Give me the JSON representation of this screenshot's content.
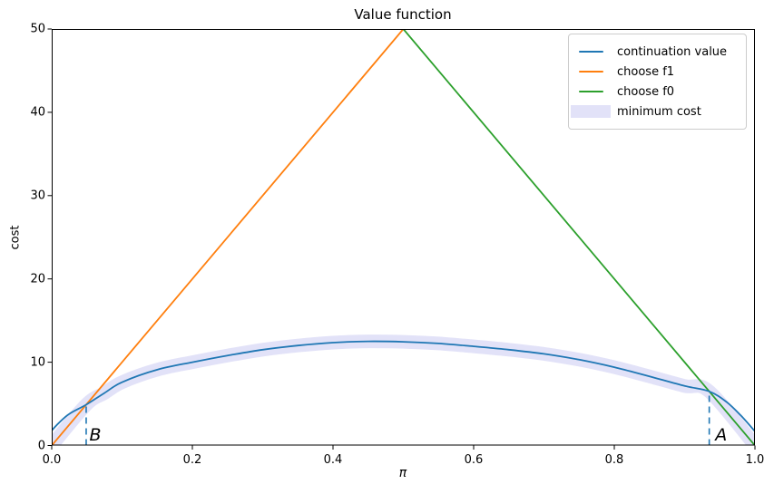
{
  "chart_data": {
    "type": "line",
    "title": "Value function",
    "xlabel": "π",
    "ylabel": "cost",
    "xlim": [
      0.0,
      1.0
    ],
    "ylim": [
      0,
      50
    ],
    "grid": false,
    "x_ticks": [
      0.0,
      0.2,
      0.4,
      0.6,
      0.8,
      1.0
    ],
    "x_tick_labels": [
      "0.0",
      "0.2",
      "0.4",
      "0.6",
      "0.8",
      "1.0"
    ],
    "y_ticks": [
      0,
      10,
      20,
      30,
      40,
      50
    ],
    "y_tick_labels": [
      "0",
      "10",
      "20",
      "30",
      "40",
      "50"
    ],
    "frame_color": "#000000",
    "legend": {
      "position": "upper right",
      "entries": [
        {
          "label": "continuation value",
          "type": "line",
          "color": "#1f77b4"
        },
        {
          "label": "choose f1",
          "type": "line",
          "color": "#ff7f0e"
        },
        {
          "label": "choose f0",
          "type": "line",
          "color": "#2ca02c"
        },
        {
          "label": "minimum cost",
          "type": "patch",
          "color": "#e2e2f8"
        }
      ]
    },
    "series": [
      {
        "name": "minimum cost",
        "kind": "band",
        "color": "#e2e2f8",
        "stroke_width": 15,
        "smooth": true,
        "x": [
          0.0,
          0.049,
          0.075,
          0.1,
          0.15,
          0.2,
          0.25,
          0.3,
          0.35,
          0.4,
          0.45,
          0.5,
          0.55,
          0.6,
          0.65,
          0.7,
          0.75,
          0.8,
          0.85,
          0.9,
          0.935,
          1.0
        ],
        "y": [
          0.0,
          4.9,
          6.3,
          7.6,
          9.1,
          10.0,
          10.8,
          11.5,
          12.0,
          12.35,
          12.5,
          12.45,
          12.25,
          11.9,
          11.5,
          11.0,
          10.3,
          9.4,
          8.3,
          7.15,
          6.5,
          0.0
        ]
      },
      {
        "name": "choose f1",
        "kind": "line",
        "color": "#ff7f0e",
        "stroke_width": 1.8,
        "smooth": false,
        "x": [
          0.0,
          0.5
        ],
        "y": [
          0,
          50
        ]
      },
      {
        "name": "choose f0",
        "kind": "line",
        "color": "#2ca02c",
        "stroke_width": 1.8,
        "smooth": false,
        "x": [
          0.5,
          1.0
        ],
        "y": [
          50,
          0
        ]
      },
      {
        "name": "continuation value",
        "kind": "line",
        "color": "#1f77b4",
        "stroke_width": 1.8,
        "smooth": true,
        "x": [
          0.0,
          0.01,
          0.025,
          0.049,
          0.075,
          0.1,
          0.15,
          0.2,
          0.25,
          0.3,
          0.35,
          0.4,
          0.45,
          0.5,
          0.55,
          0.6,
          0.65,
          0.7,
          0.75,
          0.8,
          0.85,
          0.9,
          0.935,
          0.96,
          0.98,
          1.0
        ],
        "y": [
          1.8,
          2.7,
          3.8,
          4.9,
          6.3,
          7.6,
          9.1,
          10.0,
          10.8,
          11.5,
          12.0,
          12.35,
          12.5,
          12.45,
          12.25,
          11.9,
          11.5,
          11.0,
          10.3,
          9.4,
          8.3,
          7.15,
          6.5,
          5.2,
          3.6,
          1.7
        ]
      }
    ],
    "threshold_lines": [
      {
        "name": "B",
        "x": 0.049,
        "y_top": 4.9,
        "color": "#1f77b4",
        "style": "dashed"
      },
      {
        "name": "A",
        "x": 0.935,
        "y_top": 6.5,
        "color": "#1f77b4",
        "style": "dashed"
      }
    ],
    "annotations": [
      {
        "text": "B",
        "x": 0.062,
        "y": 1.3
      },
      {
        "text": "A",
        "x": 0.952,
        "y": 1.3
      }
    ]
  }
}
